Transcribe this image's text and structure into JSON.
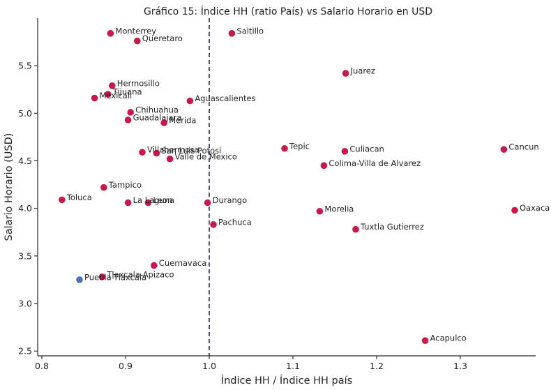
{
  "chart_data": {
    "type": "scatter",
    "title": "Gráfico 15: Índice HH (ratio País) vs Salario Horario en USD",
    "xlabel": "Índice HH / Índice HH país",
    "ylabel": "Salario Horario (USD)",
    "xlim": [
      0.795,
      1.39
    ],
    "ylim": [
      2.45,
      6.0
    ],
    "xticks": [
      "0.8",
      "0.9",
      "1.0",
      "1.1",
      "1.2",
      "1.3"
    ],
    "xtick_values": [
      0.8,
      0.9,
      1.0,
      1.1,
      1.2,
      1.3
    ],
    "yticks": [
      "2.5",
      "3.0",
      "3.5",
      "4.0",
      "4.5",
      "5.0",
      "5.5"
    ],
    "ytick_values": [
      2.5,
      3.0,
      3.5,
      4.0,
      4.5,
      5.0,
      5.5
    ],
    "reference_line_x": 1.0,
    "grid": false,
    "colors": {
      "default": "#c8174b",
      "highlight": "#4a72b0",
      "refline": "#1e2140",
      "axis": "#222222"
    },
    "points": [
      {
        "name": "Monterrey",
        "x": 0.882,
        "y": 5.84,
        "highlight": false
      },
      {
        "name": "Queretaro",
        "x": 0.914,
        "y": 5.76,
        "highlight": false
      },
      {
        "name": "Saltillo",
        "x": 1.027,
        "y": 5.84,
        "highlight": false
      },
      {
        "name": "Juarez",
        "x": 1.163,
        "y": 5.42,
        "highlight": false
      },
      {
        "name": "Hermosillo",
        "x": 0.884,
        "y": 5.29,
        "highlight": false
      },
      {
        "name": "Tijuana",
        "x": 0.879,
        "y": 5.2,
        "highlight": false
      },
      {
        "name": "Mexicali",
        "x": 0.863,
        "y": 5.16,
        "highlight": false
      },
      {
        "name": "Aguascalientes",
        "x": 0.977,
        "y": 5.13,
        "highlight": false
      },
      {
        "name": "Chihuahua",
        "x": 0.906,
        "y": 5.01,
        "highlight": false
      },
      {
        "name": "Guadalajara",
        "x": 0.903,
        "y": 4.93,
        "highlight": false
      },
      {
        "name": "Merida",
        "x": 0.946,
        "y": 4.9,
        "highlight": false
      },
      {
        "name": "Tepic",
        "x": 1.09,
        "y": 4.63,
        "highlight": false
      },
      {
        "name": "Culiacan",
        "x": 1.162,
        "y": 4.6,
        "highlight": false
      },
      {
        "name": "Cancun",
        "x": 1.352,
        "y": 4.62,
        "highlight": false
      },
      {
        "name": "Villahermosa",
        "x": 0.92,
        "y": 4.59,
        "highlight": false
      },
      {
        "name": "San Luis Potosi",
        "x": 0.937,
        "y": 4.58,
        "highlight": false
      },
      {
        "name": "Valle de Mexico",
        "x": 0.953,
        "y": 4.52,
        "highlight": false
      },
      {
        "name": "Colima-Villa de Alvarez",
        "x": 1.137,
        "y": 4.45,
        "highlight": false
      },
      {
        "name": "Tampico",
        "x": 0.874,
        "y": 4.22,
        "highlight": false
      },
      {
        "name": "Toluca",
        "x": 0.824,
        "y": 4.09,
        "highlight": false
      },
      {
        "name": "La Laguna",
        "x": 0.903,
        "y": 4.06,
        "highlight": false
      },
      {
        "name": "Leon",
        "x": 0.927,
        "y": 4.06,
        "highlight": false
      },
      {
        "name": "Durango",
        "x": 0.998,
        "y": 4.06,
        "highlight": false
      },
      {
        "name": "Morelia",
        "x": 1.132,
        "y": 3.97,
        "highlight": false
      },
      {
        "name": "Oaxaca",
        "x": 1.365,
        "y": 3.98,
        "highlight": false
      },
      {
        "name": "Pachuca",
        "x": 1.005,
        "y": 3.83,
        "highlight": false
      },
      {
        "name": "Tuxtla Gutierrez",
        "x": 1.175,
        "y": 3.78,
        "highlight": false
      },
      {
        "name": "Cuernavaca",
        "x": 0.934,
        "y": 3.4,
        "highlight": false
      },
      {
        "name": "Tlaxcala-Apizaco",
        "x": 0.872,
        "y": 3.28,
        "highlight": false
      },
      {
        "name": "Puebla-Tlaxcala",
        "x": 0.845,
        "y": 3.25,
        "highlight": true
      },
      {
        "name": "Acapulco",
        "x": 1.258,
        "y": 2.61,
        "highlight": false
      }
    ]
  }
}
